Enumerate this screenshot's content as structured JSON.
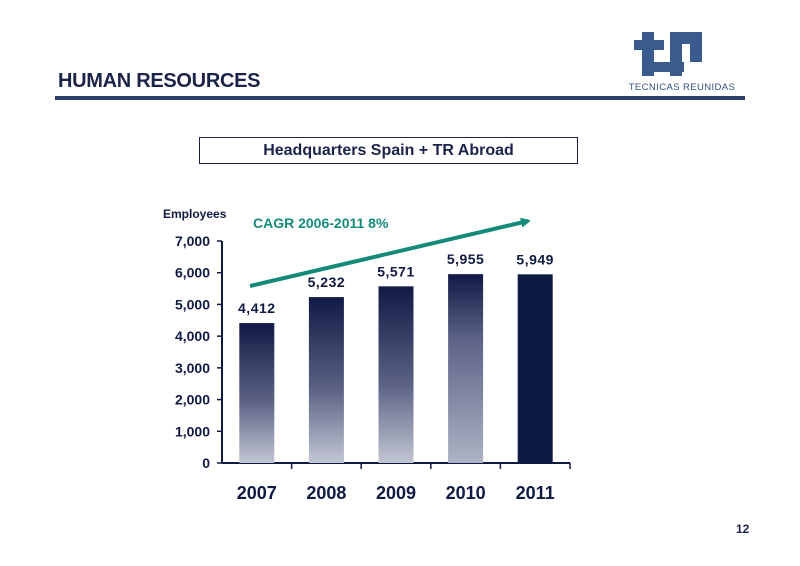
{
  "header": {
    "title": "HUMAN RESOURCES",
    "logo_text": "TECNICAS REUNIDAS"
  },
  "subtitle": "Headquarters Spain + TR Abroad",
  "page_number": "12",
  "colors": {
    "navy": "#0f1a42",
    "bar_light": "#c0c4d2",
    "teal": "#138a7a",
    "rule": "#2b3f67",
    "logo": "#3a5b8c"
  },
  "chart_data": {
    "type": "bar",
    "ylabel": "Employees",
    "categories": [
      "2007",
      "2008",
      "2009",
      "2010",
      "2011"
    ],
    "values": [
      4412,
      5232,
      5571,
      5955,
      5949
    ],
    "value_labels": [
      "4,412",
      "5,232",
      "5,571",
      "5,955",
      "5,949"
    ],
    "ylim": [
      0,
      7000
    ],
    "yticks": [
      0,
      1000,
      2000,
      3000,
      4000,
      5000,
      6000,
      7000
    ],
    "ytick_labels": [
      "0",
      "1,000",
      "2,000",
      "3,000",
      "4,000",
      "5,000",
      "6,000",
      "7,000"
    ],
    "grid": false,
    "annotation": "CAGR 2006-2011 8%"
  }
}
